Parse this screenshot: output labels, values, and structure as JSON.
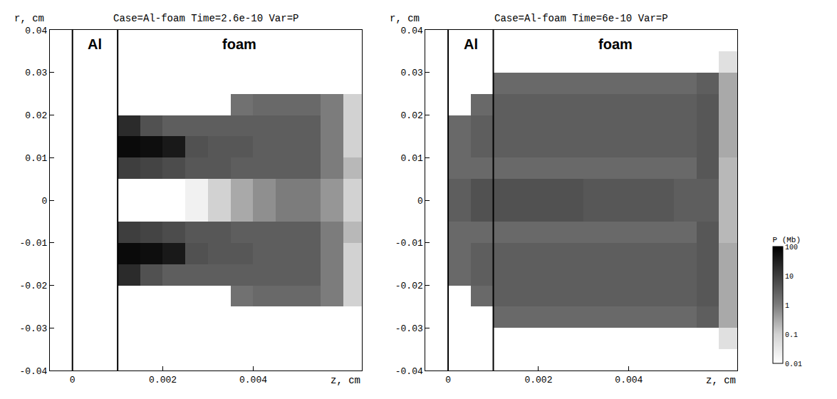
{
  "chart_data": [
    {
      "type": "heatmap",
      "title": "Case=Al-foam Time=2.6e-10 Var=P",
      "x_label": "z, cm",
      "y_label": "r, cm",
      "log": true,
      "grid": false,
      "xlim": [
        -0.0005,
        0.0064
      ],
      "ylim": [
        -0.04,
        0.04
      ],
      "xticks": [
        0,
        0.002,
        0.004
      ],
      "yticks": [
        -0.04,
        -0.03,
        -0.02,
        -0.01,
        0,
        0.01,
        0.02,
        0.03,
        0.04
      ],
      "materials": [
        {
          "name": "Al",
          "from": 0,
          "to": 0.001
        },
        {
          "name": "foam",
          "from": 0.001
        }
      ],
      "x": [
        0.00025,
        0.00075,
        0.00125,
        0.00175,
        0.00225,
        0.00275,
        0.00325,
        0.00375,
        0.00425,
        0.00475,
        0.00525,
        0.00575,
        0.00625
      ],
      "y": [
        -0.0375,
        -0.0325,
        -0.0275,
        -0.0225,
        -0.0175,
        -0.0125,
        -0.0075,
        -0.0025,
        0.0025,
        0.0075,
        0.0125,
        0.0175,
        0.0225,
        0.0275,
        0.0325,
        0.0375
      ],
      "cells": [
        [
          null,
          null,
          null,
          null,
          null,
          null,
          null,
          null,
          null,
          null,
          null,
          null,
          null
        ],
        [
          null,
          null,
          null,
          null,
          null,
          null,
          null,
          null,
          null,
          null,
          null,
          null,
          null
        ],
        [
          null,
          null,
          null,
          null,
          null,
          null,
          null,
          null,
          null,
          null,
          null,
          null,
          null
        ],
        [
          null,
          null,
          null,
          null,
          null,
          null,
          null,
          1.5,
          2,
          2,
          2,
          1,
          0.1
        ],
        [
          null,
          null,
          20,
          5,
          3,
          3,
          3,
          3,
          3,
          3,
          3,
          1,
          0.1
        ],
        [
          null,
          null,
          70,
          60,
          40,
          5,
          4,
          4,
          3,
          3,
          3,
          1,
          0.1
        ],
        [
          null,
          null,
          10,
          8,
          6,
          4,
          4,
          3,
          3,
          3,
          3,
          1,
          0.2
        ],
        [
          null,
          null,
          null,
          null,
          null,
          0.02,
          0.1,
          0.3,
          0.6,
          1,
          1,
          0.5,
          0.1
        ],
        [
          null,
          null,
          null,
          null,
          null,
          0.02,
          0.1,
          0.3,
          0.6,
          1,
          1,
          0.5,
          0.1
        ],
        [
          null,
          null,
          10,
          8,
          6,
          4,
          4,
          3,
          3,
          3,
          3,
          1,
          0.2
        ],
        [
          null,
          null,
          70,
          60,
          40,
          5,
          4,
          4,
          3,
          3,
          3,
          1,
          0.1
        ],
        [
          null,
          null,
          20,
          5,
          3,
          3,
          3,
          3,
          3,
          3,
          3,
          1,
          0.1
        ],
        [
          null,
          null,
          null,
          null,
          null,
          null,
          null,
          1.5,
          2,
          2,
          2,
          1,
          0.1
        ],
        [
          null,
          null,
          null,
          null,
          null,
          null,
          null,
          null,
          null,
          null,
          null,
          null,
          null
        ],
        [
          null,
          null,
          null,
          null,
          null,
          null,
          null,
          null,
          null,
          null,
          null,
          null,
          null
        ],
        [
          null,
          null,
          null,
          null,
          null,
          null,
          null,
          null,
          null,
          null,
          null,
          null,
          null
        ]
      ]
    },
    {
      "type": "heatmap",
      "title": "Case=Al-foam Time=6e-10 Var=P",
      "x_label": "z, cm",
      "y_label": "r, cm",
      "log": true,
      "grid": false,
      "xlim": [
        -0.0005,
        0.0064
      ],
      "ylim": [
        -0.04,
        0.04
      ],
      "xticks": [
        0,
        0.002,
        0.004
      ],
      "yticks": [
        -0.04,
        -0.03,
        -0.02,
        -0.01,
        0,
        0.01,
        0.02,
        0.03,
        0.04
      ],
      "materials": [
        {
          "name": "Al",
          "from": 0,
          "to": 0.001
        },
        {
          "name": "foam",
          "from": 0.001
        }
      ],
      "x": [
        0.00025,
        0.00075,
        0.00125,
        0.00175,
        0.00225,
        0.00275,
        0.00325,
        0.00375,
        0.00425,
        0.00475,
        0.00525,
        0.00575,
        0.00625
      ],
      "y": [
        -0.0375,
        -0.0325,
        -0.0275,
        -0.0225,
        -0.0175,
        -0.0125,
        -0.0075,
        -0.0025,
        0.0025,
        0.0075,
        0.0125,
        0.0175,
        0.0225,
        0.0275,
        0.0325,
        0.0375
      ],
      "cells": [
        [
          null,
          null,
          null,
          null,
          null,
          null,
          null,
          null,
          null,
          null,
          null,
          null,
          null
        ],
        [
          null,
          null,
          null,
          null,
          null,
          null,
          null,
          null,
          null,
          null,
          null,
          null,
          0.05
        ],
        [
          null,
          null,
          2,
          2,
          2,
          2,
          2,
          2,
          2,
          2,
          2,
          3,
          0.3
        ],
        [
          null,
          2,
          3,
          3,
          3,
          3,
          3,
          3,
          3,
          3,
          3,
          4,
          0.3
        ],
        [
          2,
          3,
          3,
          3,
          3,
          3,
          3,
          3,
          3,
          3,
          3,
          4,
          0.3
        ],
        [
          2,
          3,
          3,
          3,
          3,
          3,
          3,
          3,
          3,
          3,
          3,
          4,
          0.3
        ],
        [
          2,
          2,
          2,
          2,
          2,
          2,
          2,
          2,
          2,
          2,
          2,
          4,
          0.2
        ],
        [
          3,
          5,
          5,
          5,
          5,
          5,
          4,
          4,
          4,
          4,
          3,
          3,
          0.2
        ],
        [
          3,
          5,
          5,
          5,
          5,
          5,
          4,
          4,
          4,
          4,
          3,
          3,
          0.2
        ],
        [
          2,
          2,
          2,
          2,
          2,
          2,
          2,
          2,
          2,
          2,
          2,
          4,
          0.2
        ],
        [
          2,
          3,
          3,
          3,
          3,
          3,
          3,
          3,
          3,
          3,
          3,
          4,
          0.3
        ],
        [
          2,
          3,
          3,
          3,
          3,
          3,
          3,
          3,
          3,
          3,
          3,
          4,
          0.3
        ],
        [
          null,
          2,
          3,
          3,
          3,
          3,
          3,
          3,
          3,
          3,
          3,
          4,
          0.3
        ],
        [
          null,
          null,
          2,
          2,
          2,
          2,
          2,
          2,
          2,
          2,
          2,
          3,
          0.3
        ],
        [
          null,
          null,
          null,
          null,
          null,
          null,
          null,
          null,
          null,
          null,
          null,
          null,
          0.05
        ],
        [
          null,
          null,
          null,
          null,
          null,
          null,
          null,
          null,
          null,
          null,
          null,
          null,
          null
        ]
      ],
      "colorbar": {
        "title": "P (Mb)",
        "range": [
          0.01,
          100
        ],
        "ticks": [
          0.01,
          0.1,
          1,
          10,
          100
        ]
      }
    }
  ]
}
